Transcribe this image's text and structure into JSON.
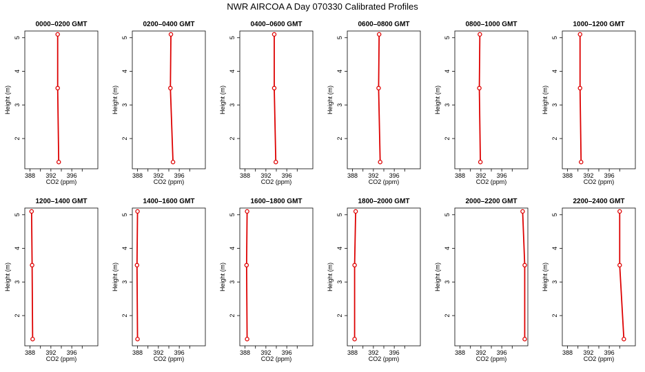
{
  "figure_title": "NWR AIRCOA A  Day 070330  Calibrated Profiles",
  "chart_data": [
    {
      "type": "line",
      "title": "0000–0200 GMT",
      "xlabel": "CO2 (ppm)",
      "ylabel": "Height (m)",
      "xlim": [
        387,
        401
      ],
      "ylim": [
        1.1,
        5.2
      ],
      "xticks": [
        388,
        392,
        396
      ],
      "yticks": [
        2,
        3,
        4,
        5
      ],
      "x": [
        393.5,
        393.3,
        393.3
      ],
      "y": [
        1.3,
        3.5,
        5.1
      ],
      "color": "#dd0000"
    },
    {
      "type": "line",
      "title": "0200–0400 GMT",
      "xlabel": "CO2 (ppm)",
      "ylabel": "Height (m)",
      "xlim": [
        387,
        401
      ],
      "ylim": [
        1.1,
        5.2
      ],
      "xticks": [
        388,
        392,
        396
      ],
      "yticks": [
        2,
        3,
        4,
        5
      ],
      "x": [
        394.8,
        394.3,
        394.4
      ],
      "y": [
        1.3,
        3.5,
        5.1
      ],
      "color": "#dd0000"
    },
    {
      "type": "line",
      "title": "0400–0600 GMT",
      "xlabel": "CO2 (ppm)",
      "ylabel": "Height (m)",
      "xlim": [
        387,
        401
      ],
      "ylim": [
        1.1,
        5.2
      ],
      "xticks": [
        388,
        392,
        396
      ],
      "yticks": [
        2,
        3,
        4,
        5
      ],
      "x": [
        393.9,
        393.6,
        393.6
      ],
      "y": [
        1.3,
        3.5,
        5.1
      ],
      "color": "#dd0000"
    },
    {
      "type": "line",
      "title": "0600–0800 GMT",
      "xlabel": "CO2 (ppm)",
      "ylabel": "Height (m)",
      "xlim": [
        387,
        401
      ],
      "ylim": [
        1.1,
        5.2
      ],
      "xticks": [
        388,
        392,
        396
      ],
      "yticks": [
        2,
        3,
        4,
        5
      ],
      "x": [
        393.3,
        393.0,
        393.1
      ],
      "y": [
        1.3,
        3.5,
        5.1
      ],
      "color": "#dd0000"
    },
    {
      "type": "line",
      "title": "0800–1000 GMT",
      "xlabel": "CO2 (ppm)",
      "ylabel": "Height (m)",
      "xlim": [
        387,
        401
      ],
      "ylim": [
        1.1,
        5.2
      ],
      "xticks": [
        388,
        392,
        396
      ],
      "yticks": [
        2,
        3,
        4,
        5
      ],
      "x": [
        391.9,
        391.7,
        391.8
      ],
      "y": [
        1.3,
        3.5,
        5.1
      ],
      "color": "#dd0000"
    },
    {
      "type": "line",
      "title": "1000–1200 GMT",
      "xlabel": "CO2 (ppm)",
      "ylabel": "Height (m)",
      "xlim": [
        387,
        401
      ],
      "ylim": [
        1.1,
        5.2
      ],
      "xticks": [
        388,
        392,
        396
      ],
      "yticks": [
        2,
        3,
        4,
        5
      ],
      "x": [
        390.6,
        390.4,
        390.4
      ],
      "y": [
        1.3,
        3.5,
        5.1
      ],
      "color": "#dd0000"
    },
    {
      "type": "line",
      "title": "1200–1400 GMT",
      "xlabel": "CO2 (ppm)",
      "ylabel": "Height (m)",
      "xlim": [
        387,
        401
      ],
      "ylim": [
        1.1,
        5.2
      ],
      "xticks": [
        388,
        392,
        396
      ],
      "yticks": [
        2,
        3,
        4,
        5
      ],
      "x": [
        388.5,
        388.4,
        388.3
      ],
      "y": [
        1.3,
        3.5,
        5.1
      ],
      "color": "#dd0000"
    },
    {
      "type": "line",
      "title": "1400–1600 GMT",
      "xlabel": "CO2 (ppm)",
      "ylabel": "Height (m)",
      "xlim": [
        387,
        401
      ],
      "ylim": [
        1.1,
        5.2
      ],
      "xticks": [
        388,
        392,
        396
      ],
      "yticks": [
        2,
        3,
        4,
        5
      ],
      "x": [
        388.0,
        387.9,
        388.0
      ],
      "y": [
        1.3,
        3.5,
        5.1
      ],
      "color": "#dd0000"
    },
    {
      "type": "line",
      "title": "1600–1800 GMT",
      "xlabel": "CO2 (ppm)",
      "ylabel": "Height (m)",
      "xlim": [
        387,
        401
      ],
      "ylim": [
        1.1,
        5.2
      ],
      "xticks": [
        388,
        392,
        396
      ],
      "yticks": [
        2,
        3,
        4,
        5
      ],
      "x": [
        388.4,
        388.3,
        388.4
      ],
      "y": [
        1.3,
        3.5,
        5.1
      ],
      "color": "#dd0000"
    },
    {
      "type": "line",
      "title": "1800–2000 GMT",
      "xlabel": "CO2 (ppm)",
      "ylabel": "Height (m)",
      "xlim": [
        387,
        401
      ],
      "ylim": [
        1.1,
        5.2
      ],
      "xticks": [
        388,
        392,
        396
      ],
      "yticks": [
        2,
        3,
        4,
        5
      ],
      "x": [
        388.4,
        388.4,
        388.6
      ],
      "y": [
        1.3,
        3.5,
        5.1
      ],
      "color": "#dd0000"
    },
    {
      "type": "line",
      "title": "2000–2200 GMT",
      "xlabel": "CO2 (ppm)",
      "ylabel": "Height (m)",
      "xlim": [
        387,
        401
      ],
      "ylim": [
        1.1,
        5.2
      ],
      "xticks": [
        388,
        392,
        396
      ],
      "yticks": [
        2,
        3,
        4,
        5
      ],
      "x": [
        400.4,
        400.4,
        400.0
      ],
      "y": [
        1.3,
        3.5,
        5.1
      ],
      "color": "#dd0000"
    },
    {
      "type": "line",
      "title": "2200–2400 GMT",
      "xlabel": "CO2 (ppm)",
      "ylabel": "Height (m)",
      "xlim": [
        387,
        401
      ],
      "ylim": [
        1.1,
        5.2
      ],
      "xticks": [
        388,
        392,
        396
      ],
      "yticks": [
        2,
        3,
        4,
        5
      ],
      "x": [
        398.8,
        398.0,
        398.0
      ],
      "y": [
        1.3,
        3.5,
        5.1
      ],
      "color": "#dd0000"
    }
  ]
}
